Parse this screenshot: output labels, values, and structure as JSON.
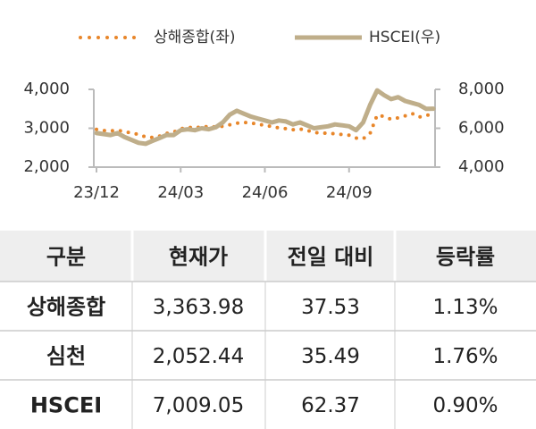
{
  "chart_data": {
    "type": "line",
    "categories": [
      "23/12",
      null,
      null,
      null,
      null,
      null,
      null,
      null,
      null,
      null,
      null,
      null,
      "24/03",
      null,
      null,
      null,
      null,
      null,
      null,
      null,
      null,
      null,
      null,
      null,
      "24/06",
      null,
      null,
      null,
      null,
      null,
      null,
      null,
      null,
      null,
      null,
      null,
      "24/09",
      null,
      null,
      null,
      null,
      null,
      null,
      null,
      null,
      null,
      null,
      null,
      null
    ],
    "series": [
      {
        "name": "상해종합(좌)",
        "color": "#e8862a",
        "style": "dotted",
        "values": [
          2970,
          2940,
          2930,
          2950,
          2910,
          2880,
          2840,
          2780,
          2760,
          2800,
          2870,
          2900,
          2990,
          3010,
          3040,
          3010,
          3060,
          3030,
          3050,
          3090,
          3130,
          3150,
          3140,
          3100,
          3080,
          3040,
          3010,
          2990,
          2960,
          2980,
          2950,
          2890,
          2880,
          2870,
          2860,
          2840,
          2820,
          2750,
          2730,
          2870,
          3340,
          3300,
          3230,
          3270,
          3320,
          3380,
          3290,
          3330,
          3364
        ]
      },
      {
        "name": "HSCEI(우)",
        "color": "#bfae8a",
        "style": "solid",
        "axis": "y2",
        "values": [
          5750,
          5700,
          5650,
          5750,
          5550,
          5400,
          5250,
          5200,
          5350,
          5500,
          5650,
          5650,
          5900,
          5950,
          5900,
          6000,
          5950,
          6050,
          6300,
          6700,
          6900,
          6750,
          6600,
          6500,
          6400,
          6300,
          6400,
          6350,
          6200,
          6300,
          6150,
          6000,
          6050,
          6100,
          6200,
          6150,
          6100,
          5900,
          6300,
          7200,
          7950,
          7700,
          7500,
          7600,
          7400,
          7300,
          7200,
          7000,
          7009
        ]
      }
    ],
    "ylim": [
      2000,
      4000
    ],
    "yticks": [
      {
        "value": 2000,
        "label": "2,000"
      },
      {
        "value": 3000,
        "label": "3,000"
      },
      {
        "value": 4000,
        "label": "4,000"
      }
    ],
    "y2lim": [
      4000,
      8000
    ],
    "y2ticks": [
      {
        "value": 4000,
        "label": "4,000"
      },
      {
        "value": 6000,
        "label": "6,000"
      },
      {
        "value": 8000,
        "label": "8,000"
      }
    ],
    "grid": false
  },
  "table": {
    "header": [
      "구분",
      "현재가",
      "전일 대비",
      "등락률"
    ],
    "rows": [
      [
        "상해종합",
        "3,363.98",
        "37.53",
        "1.13%"
      ],
      [
        "심천",
        "2,052.44",
        "35.49",
        "1.76%"
      ],
      [
        "HSCEI",
        "7,009.05",
        "62.37",
        "0.90%"
      ]
    ]
  }
}
